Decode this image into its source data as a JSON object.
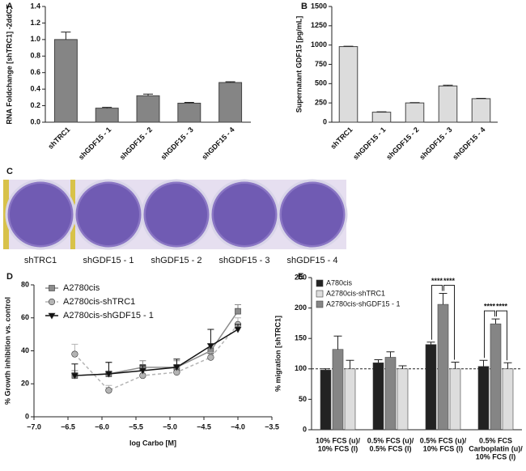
{
  "chart_data": [
    {
      "panel": "A",
      "type": "bar",
      "ylabel": "RNA Foldchange [shTRC1] -2ddCT",
      "categories": [
        "shTRC1",
        "shGDF15 - 1",
        "shGDF15 - 2",
        "shGDF15 - 3",
        "shGDF15 - 4"
      ],
      "values": [
        1.0,
        0.17,
        0.32,
        0.23,
        0.48
      ],
      "errors": [
        0.09,
        0.01,
        0.02,
        0.01,
        0.01
      ],
      "color": "#858585",
      "ylim": [
        0,
        1.4
      ],
      "yticks": [
        {
          "value": 0,
          "label": "0.0"
        },
        0.2,
        0.4,
        0.6,
        0.8,
        {
          "value": 1,
          "label": "1.0"
        },
        1.2,
        1.4
      ]
    },
    {
      "panel": "B",
      "type": "bar",
      "ylabel": "Supernatant GDF15 [pg/mL]",
      "categories": [
        "shTRC1",
        "shGDF15 - 1",
        "shGDF15 - 2",
        "shGDF15 - 3",
        "shGDF15 - 4"
      ],
      "values": [
        980,
        130,
        250,
        470,
        305
      ],
      "errors": [
        5,
        5,
        5,
        10,
        5
      ],
      "color": "#dcdcdc",
      "ylim": [
        0,
        1500
      ],
      "yticks": [
        0,
        250,
        500,
        750,
        1000,
        1250,
        1500
      ]
    },
    {
      "panel": "C",
      "type": "image",
      "labels": [
        "shTRC1",
        "shGDF15 - 1",
        "shGDF15 - 2",
        "shGDF15 - 3",
        "shGDF15 - 4"
      ]
    },
    {
      "panel": "D",
      "type": "line",
      "xlabel": "log Carbo [M]",
      "ylabel": "% Growth inhibition vs. control",
      "x": [
        -6.4,
        -5.9,
        -5.4,
        -4.9,
        -4.4,
        -4.0
      ],
      "series": [
        {
          "name": "A2780cis",
          "color": "#8c8c8c",
          "marker": "square",
          "dash": false,
          "values": [
            25,
            26,
            30,
            30,
            40,
            64
          ],
          "errors": [
            3,
            7,
            4,
            4,
            4,
            4
          ]
        },
        {
          "name": "A2780cis-shTRC1",
          "color": "#b4b4b4",
          "marker": "circle",
          "dash": true,
          "values": [
            38,
            16,
            25,
            27,
            36,
            56
          ],
          "errors": [
            6,
            3,
            3,
            3,
            3,
            4
          ]
        },
        {
          "name": "A2780cis-shGDF15 - 1",
          "color": "#111111",
          "marker": "triangle",
          "dash": false,
          "values": [
            25,
            26,
            28,
            30,
            43,
            53
          ],
          "errors": [
            7,
            7,
            3,
            5,
            10,
            3
          ]
        }
      ],
      "xlim": [
        -7,
        -3.5
      ],
      "xticks": [
        {
          "value": -7,
          "label": "−7.0"
        },
        {
          "value": -6.5,
          "label": "−6.5"
        },
        {
          "value": -6,
          "label": "−6.0"
        },
        {
          "value": -5.5,
          "label": "−5.5"
        },
        {
          "value": -5,
          "label": "−5.0"
        },
        {
          "value": -4.5,
          "label": "−4.5"
        },
        {
          "value": -4,
          "label": "−4.0"
        },
        {
          "value": -3.5,
          "label": "−3.5"
        }
      ],
      "ylim": [
        0,
        80
      ],
      "yticks": [
        0,
        20,
        40,
        60,
        80
      ]
    },
    {
      "panel": "E",
      "type": "grouped_bar",
      "ylabel": "% migration [shTRC1]",
      "categories": [
        [
          "10% FCS (u)/",
          "10% FCS (l)"
        ],
        [
          "0.5% FCS (u)/",
          "0.5% FCS (l)"
        ],
        [
          "0.5% FCS (u)/",
          "10% FCS (l)"
        ],
        [
          "0.5% FCS",
          "Carboplatin (u)/",
          "10% FCS (l)"
        ]
      ],
      "series": [
        {
          "name": "A780cis",
          "color": "#222222",
          "values": [
            98,
            110,
            140,
            104
          ],
          "errors": [
            2,
            5,
            4,
            10
          ]
        },
        {
          "name": "A2780cis-shTRC1",
          "color": "#dddddd",
          "values": [
            100,
            100,
            100,
            100
          ],
          "errors": [
            14,
            5,
            11,
            10
          ]
        },
        {
          "name": "A2780cis-shGDF15 - 1",
          "color": "#858585",
          "values": [
            132,
            119,
            206,
            174
          ],
          "errors": [
            22,
            9,
            18,
            8
          ]
        }
      ],
      "hline": 100,
      "annotations": [
        "****",
        "****",
        "****",
        "****"
      ],
      "ylim": [
        0,
        250
      ],
      "yticks": [
        0,
        50,
        100,
        150,
        200,
        250
      ]
    }
  ]
}
